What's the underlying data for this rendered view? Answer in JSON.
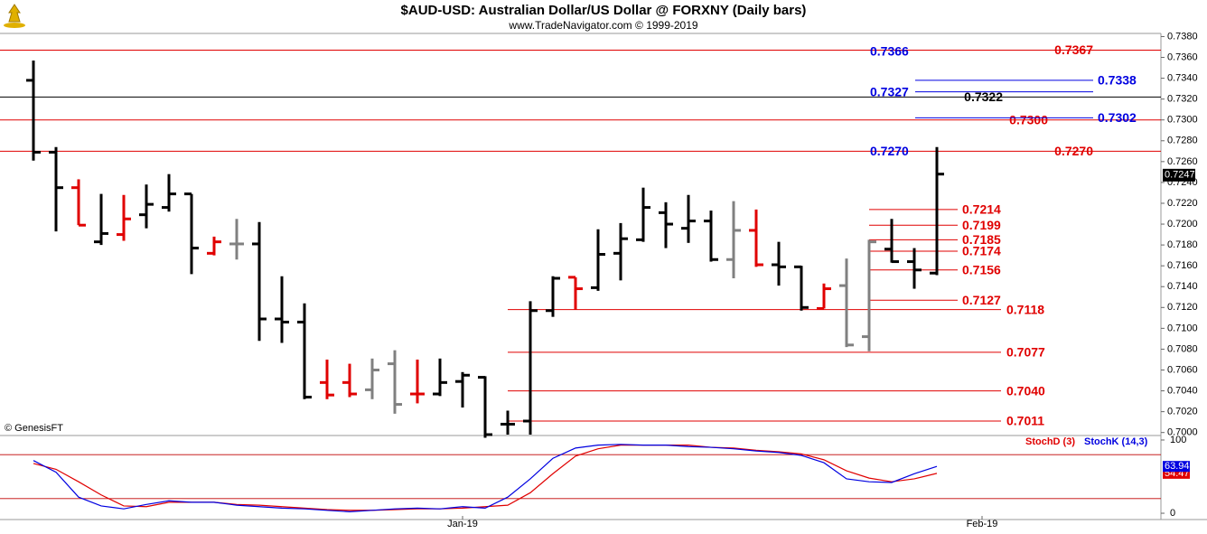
{
  "chart_data": [
    {
      "type": "ohlc",
      "title": "$AUD-USD:  Australian Dollar/US Dollar @ FORXNY  (Daily bars)",
      "subtitle": "www.TradeNavigator.com © 1999-2019",
      "annotation": "© GenesisFT",
      "xlim": [
        -1.48,
        49.92
      ],
      "ylim": [
        0.6998,
        0.7383
      ],
      "yticks": [
        {
          "value": 0.7,
          "label": "0.7000"
        },
        {
          "value": 0.702,
          "label": "0.7020"
        },
        {
          "value": 0.704,
          "label": "0.7040"
        },
        {
          "value": 0.706,
          "label": "0.7060"
        },
        {
          "value": 0.708,
          "label": "0.7080"
        },
        {
          "value": 0.71,
          "label": "0.7100"
        },
        {
          "value": 0.712,
          "label": "0.7120"
        },
        {
          "value": 0.714,
          "label": "0.7140"
        },
        {
          "value": 0.716,
          "label": "0.7160"
        },
        {
          "value": 0.718,
          "label": "0.7180"
        },
        {
          "value": 0.72,
          "label": "0.7200"
        },
        {
          "value": 0.722,
          "label": "0.7220"
        },
        {
          "value": 0.724,
          "label": "0.7240"
        },
        {
          "value": 0.726,
          "label": "0.7260"
        },
        {
          "value": 0.728,
          "label": "0.7280"
        },
        {
          "value": 0.73,
          "label": "0.7300"
        },
        {
          "value": 0.732,
          "label": "0.7320"
        },
        {
          "value": 0.734,
          "label": "0.7340"
        },
        {
          "value": 0.736,
          "label": "0.7360"
        },
        {
          "value": 0.738,
          "label": "0.7380"
        }
      ],
      "open": [
        0.7338,
        0.7269,
        0.7235,
        0.7183,
        0.719,
        0.7209,
        0.7216,
        0.7229,
        0.7172,
        0.7181,
        0.7181,
        0.7109,
        0.7106,
        0.7048,
        0.7048,
        0.7041,
        0.7066,
        0.7037,
        0.7037,
        0.7049,
        0.7053,
        0.7008,
        0.7011,
        0.7117,
        0.7149,
        0.7139,
        0.7172,
        0.7185,
        0.7211,
        0.7196,
        0.7203,
        0.7166,
        0.7194,
        0.7161,
        0.7159,
        0.7119,
        0.7141,
        0.7092,
        0.7176,
        0.7164,
        0.7153
      ],
      "high": [
        0.7357,
        0.7274,
        0.7243,
        0.7229,
        0.7228,
        0.7238,
        0.7248,
        0.7229,
        0.7188,
        0.7205,
        0.7202,
        0.715,
        0.7124,
        0.707,
        0.7066,
        0.7071,
        0.7079,
        0.707,
        0.7071,
        0.7058,
        0.7054,
        0.7021,
        0.7126,
        0.715,
        0.7149,
        0.7195,
        0.7201,
        0.7235,
        0.7221,
        0.7228,
        0.7213,
        0.7222,
        0.7214,
        0.7183,
        0.716,
        0.7143,
        0.7167,
        0.7185,
        0.7205,
        0.7177,
        0.7274
      ],
      "low": [
        0.7261,
        0.7193,
        0.7199,
        0.718,
        0.7184,
        0.7196,
        0.7212,
        0.7152,
        0.717,
        0.7166,
        0.7088,
        0.7086,
        0.7032,
        0.7032,
        0.7034,
        0.7032,
        0.7018,
        0.7028,
        0.7035,
        0.7024,
        0.6995,
        0.6998,
        0.6998,
        0.7111,
        0.7118,
        0.7136,
        0.7146,
        0.7183,
        0.7177,
        0.7182,
        0.7164,
        0.7148,
        0.7159,
        0.7141,
        0.7117,
        0.7119,
        0.7082,
        0.7078,
        0.7163,
        0.7138,
        0.7151
      ],
      "close": [
        0.7269,
        0.7235,
        0.7199,
        0.7191,
        0.7205,
        0.7219,
        0.7229,
        0.7177,
        0.7183,
        0.7181,
        0.7109,
        0.7106,
        0.7034,
        0.7036,
        0.7037,
        0.706,
        0.7027,
        0.7037,
        0.7048,
        0.7055,
        0.6998,
        0.7008,
        0.7117,
        0.7148,
        0.7138,
        0.7171,
        0.7186,
        0.7216,
        0.72,
        0.7203,
        0.7166,
        0.7194,
        0.7161,
        0.7159,
        0.712,
        0.7138,
        0.7084,
        0.7183,
        0.7164,
        0.7156,
        0.7248
      ],
      "colors": [
        "#000000",
        "#000000",
        "#e00000",
        "#000000",
        "#e00000",
        "#000000",
        "#000000",
        "#000000",
        "#e00000",
        "#808080",
        "#000000",
        "#000000",
        "#000000",
        "#e00000",
        "#e00000",
        "#808080",
        "#808080",
        "#e00000",
        "#000000",
        "#000000",
        "#000000",
        "#000000",
        "#000000",
        "#000000",
        "#e00000",
        "#000000",
        "#000000",
        "#000000",
        "#000000",
        "#000000",
        "#000000",
        "#808080",
        "#e00000",
        "#000000",
        "#000000",
        "#e00000",
        "#808080",
        "#808080",
        "#000000",
        "#000000",
        "#000000"
      ],
      "last_price": {
        "value": 0.7247,
        "label": "0.7247"
      },
      "full_levels": [
        {
          "value": 0.7367,
          "label": "0.7367",
          "color": "#e00000"
        },
        {
          "value": 0.7322,
          "label": "0.7322",
          "color": "#000000"
        },
        {
          "value": 0.73,
          "label": "0.7300",
          "color": "#e00000"
        },
        {
          "value": 0.727,
          "label": "0.7270",
          "color": "#e00000"
        }
      ],
      "blue_levels": [
        {
          "value": 0.7366,
          "label": "0.7366",
          "color": "#0000e0",
          "side": "left"
        },
        {
          "value": 0.7338,
          "label": "0.7338",
          "color": "#0000e0",
          "side": "right"
        },
        {
          "value": 0.7327,
          "label": "0.7327",
          "color": "#0000e0",
          "side": "left"
        },
        {
          "value": 0.7302,
          "label": "0.7302",
          "color": "#0000e0",
          "side": "right"
        },
        {
          "value": 0.727,
          "label": "0.7270",
          "color": "#0000e0",
          "side": "left"
        }
      ],
      "near_levels": [
        {
          "value": 0.7214,
          "label": "0.7214",
          "color": "#e00000"
        },
        {
          "value": 0.7199,
          "label": "0.7199",
          "color": "#e00000"
        },
        {
          "value": 0.7185,
          "label": "0.7185",
          "color": "#e00000"
        },
        {
          "value": 0.7174,
          "label": "0.7174",
          "color": "#e00000"
        },
        {
          "value": 0.7156,
          "label": "0.7156",
          "color": "#e00000"
        },
        {
          "value": 0.7127,
          "label": "0.7127",
          "color": "#e00000"
        }
      ],
      "mid_levels": [
        {
          "value": 0.7118,
          "label": "0.7118",
          "color": "#e00000"
        },
        {
          "value": 0.7077,
          "label": "0.7077",
          "color": "#e00000"
        },
        {
          "value": 0.704,
          "label": "0.7040",
          "color": "#e00000"
        },
        {
          "value": 0.7011,
          "label": "0.7011",
          "color": "#e00000"
        }
      ]
    },
    {
      "type": "line",
      "xlim": [
        -1.48,
        49.92
      ],
      "ylim": [
        -8.6,
        104.9
      ],
      "yticks": [
        0,
        100
      ],
      "levels": [
        20,
        80
      ],
      "xticks": [
        {
          "value": 19,
          "label": "Jan-19"
        },
        {
          "value": 42,
          "label": "Feb-19"
        }
      ],
      "series": [
        {
          "name": "StochD (3)",
          "color": "#e00000",
          "values": [
            68,
            60,
            43,
            25,
            10,
            9,
            15,
            15,
            15,
            12,
            11,
            9,
            7,
            5,
            4,
            4,
            5,
            6,
            6,
            7,
            9,
            11,
            28,
            54,
            78,
            88,
            93,
            93,
            93,
            93,
            90,
            89,
            86,
            84,
            81,
            73,
            58,
            48,
            43,
            47,
            54.47
          ]
        },
        {
          "name": "StochK (14,3)",
          "color": "#0000e0",
          "values": [
            72,
            56,
            22,
            10,
            6,
            12,
            17,
            15,
            15,
            11,
            9,
            7,
            6,
            4,
            2,
            4,
            6,
            7,
            6,
            9,
            7,
            22,
            47,
            75,
            89,
            93,
            94,
            93,
            93,
            91,
            90,
            88,
            85,
            83,
            79,
            69,
            47,
            43,
            42,
            54,
            63.94
          ]
        }
      ]
    }
  ]
}
